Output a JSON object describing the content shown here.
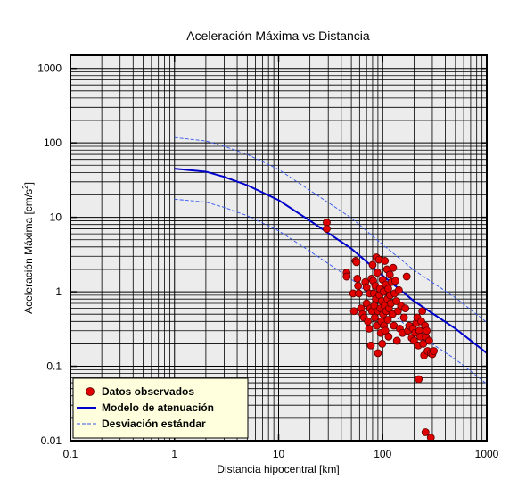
{
  "chart_data": {
    "type": "scatter",
    "title": "Aceleración Máxima vs Distancia",
    "xlabel": "Distancia hipocentral [km]",
    "ylabel_main": "Aceleración Máxima [cm/s",
    "ylabel_sup": "2",
    "ylabel_end": "]",
    "xscale": "log",
    "yscale": "log",
    "xlim": [
      0.1,
      1000
    ],
    "ylim": [
      0.01,
      1500
    ],
    "grid": true,
    "legend_position": "bottom-left",
    "x_ticks": [
      {
        "value": 0.1,
        "label": "0.1"
      },
      {
        "value": 1,
        "label": "1"
      },
      {
        "value": 10,
        "label": "10"
      },
      {
        "value": 100,
        "label": "100"
      },
      {
        "value": 1000,
        "label": "1000"
      }
    ],
    "y_ticks": [
      {
        "value": 0.01,
        "label": "0.01"
      },
      {
        "value": 0.1,
        "label": "0.1"
      },
      {
        "value": 1,
        "label": "1"
      },
      {
        "value": 10,
        "label": "10"
      },
      {
        "value": 100,
        "label": "100"
      },
      {
        "value": 1000,
        "label": "1000"
      }
    ],
    "series": [
      {
        "name": "Datos observados",
        "kind": "scatter",
        "color": "#e00000",
        "edge_color": "#5a0000",
        "points": [
          [
            29,
            8.5
          ],
          [
            29,
            7.0
          ],
          [
            45,
            1.8
          ],
          [
            45,
            1.6
          ],
          [
            52,
            0.95
          ],
          [
            53,
            0.55
          ],
          [
            55,
            2.6
          ],
          [
            56,
            2.5
          ],
          [
            57,
            1.5
          ],
          [
            58,
            1.2
          ],
          [
            59,
            0.95
          ],
          [
            62,
            0.6
          ],
          [
            64,
            0.5
          ],
          [
            66,
            0.45
          ],
          [
            68,
            1.35
          ],
          [
            70,
            1.15
          ],
          [
            70,
            0.7
          ],
          [
            72,
            0.4
          ],
          [
            74,
            0.32
          ],
          [
            75,
            0.95
          ],
          [
            76,
            0.6
          ],
          [
            77,
            0.19
          ],
          [
            78,
            1.5
          ],
          [
            79,
            0.55
          ],
          [
            80,
            2.3
          ],
          [
            81,
            1.4
          ],
          [
            82,
            0.95
          ],
          [
            83,
            0.65
          ],
          [
            84,
            0.45
          ],
          [
            85,
            1.2
          ],
          [
            86,
            0.8
          ],
          [
            87,
            2.9
          ],
          [
            88,
            0.35
          ],
          [
            89,
            1.8
          ],
          [
            90,
            0.55
          ],
          [
            90,
            0.15
          ],
          [
            92,
            2.7
          ],
          [
            93,
            0.9
          ],
          [
            94,
            1.1
          ],
          [
            95,
            0.6
          ],
          [
            96,
            0.28
          ],
          [
            97,
            0.4
          ],
          [
            98,
            0.75
          ],
          [
            99,
            0.2
          ],
          [
            100,
            1.45
          ],
          [
            101,
            0.5
          ],
          [
            102,
            1.0
          ],
          [
            103,
            0.35
          ],
          [
            104,
            0.65
          ],
          [
            105,
            2.6
          ],
          [
            106,
            0.3
          ],
          [
            107,
            1.25
          ],
          [
            108,
            0.55
          ],
          [
            110,
            2.0
          ],
          [
            111,
            0.8
          ],
          [
            112,
            0.42
          ],
          [
            113,
            1.1
          ],
          [
            114,
            0.25
          ],
          [
            115,
            0.6
          ],
          [
            117,
            1.7
          ],
          [
            118,
            0.9
          ],
          [
            120,
            0.7
          ],
          [
            122,
            1.35
          ],
          [
            124,
            0.5
          ],
          [
            126,
            2.1
          ],
          [
            128,
            0.35
          ],
          [
            130,
            0.95
          ],
          [
            132,
            1.4
          ],
          [
            135,
            0.75
          ],
          [
            137,
            0.22
          ],
          [
            140,
            0.55
          ],
          [
            143,
            1.05
          ],
          [
            146,
            0.32
          ],
          [
            150,
            0.65
          ],
          [
            155,
            0.28
          ],
          [
            160,
            0.45
          ],
          [
            165,
            0.6
          ],
          [
            170,
            1.6
          ],
          [
            175,
            0.3
          ],
          [
            180,
            0.35
          ],
          [
            190,
            0.24
          ],
          [
            195,
            0.32
          ],
          [
            200,
            0.22
          ],
          [
            205,
            0.28
          ],
          [
            210,
            0.38
          ],
          [
            215,
            0.45
          ],
          [
            220,
            0.19
          ],
          [
            222,
            0.067
          ],
          [
            225,
            0.3
          ],
          [
            230,
            0.25
          ],
          [
            235,
            0.4
          ],
          [
            240,
            0.55
          ],
          [
            245,
            0.2
          ],
          [
            250,
            0.14
          ],
          [
            255,
            0.35
          ],
          [
            258,
            0.013
          ],
          [
            260,
            0.25
          ],
          [
            265,
            0.3
          ],
          [
            270,
            0.16
          ],
          [
            280,
            0.22
          ],
          [
            290,
            0.15
          ],
          [
            300,
            0.145
          ],
          [
            310,
            0.16
          ],
          [
            290,
            0.011
          ]
        ]
      },
      {
        "name": "Modelo de atenuación",
        "kind": "line",
        "color": "#0000cc",
        "dash": "none",
        "x": [
          1,
          2,
          3,
          5,
          10,
          20,
          50,
          100,
          200,
          500,
          1000
        ],
        "y": [
          45,
          41,
          35,
          27,
          17,
          9.0,
          3.8,
          1.65,
          0.75,
          0.32,
          0.15
        ]
      },
      {
        "name": "Desviación estándar",
        "kind": "line",
        "color": "#3355ee",
        "dash": "4,2",
        "x": [
          1,
          2,
          3,
          5,
          10,
          20,
          50,
          100,
          200,
          500,
          1000
        ],
        "y": [
          118,
          106,
          90,
          70,
          44,
          23,
          9.8,
          4.3,
          1.95,
          0.83,
          0.39
        ]
      },
      {
        "name": "Desviación estándar",
        "kind": "line",
        "color": "#3355ee",
        "dash": "4,2",
        "x": [
          1,
          2,
          3,
          5,
          10,
          20,
          50,
          100,
          200,
          500,
          1000
        ],
        "y": [
          17.5,
          16,
          13.6,
          10.5,
          6.6,
          3.5,
          1.48,
          0.64,
          0.29,
          0.124,
          0.058
        ]
      }
    ],
    "legend": [
      {
        "label": "Datos observados",
        "kind": "marker"
      },
      {
        "label": "Modelo de atenuación",
        "kind": "line"
      },
      {
        "label": "Desviación estándar",
        "kind": "dashed"
      }
    ]
  }
}
